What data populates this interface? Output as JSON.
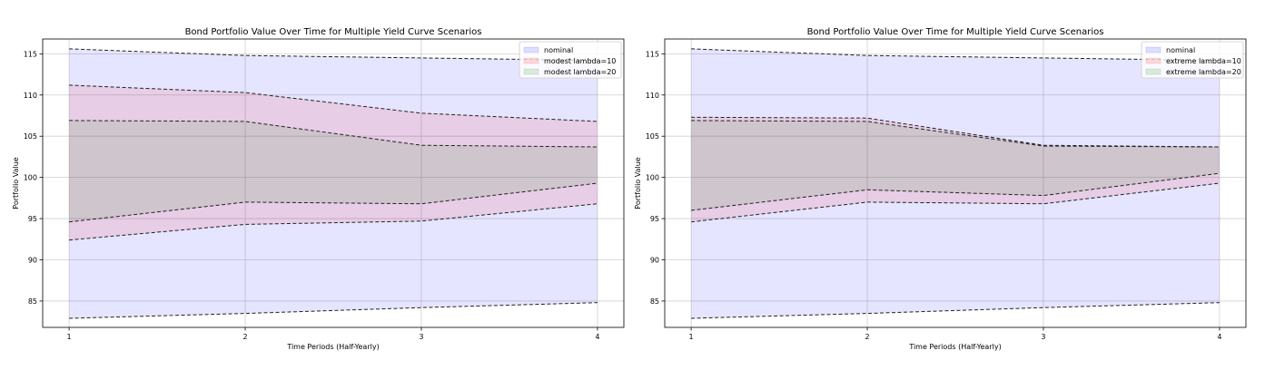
{
  "chart_data": [
    {
      "type": "area",
      "title": "Bond Portfolio Value Over Time for Multiple Yield Curve Scenarios",
      "xlabel": "Time Periods (Half-Yearly)",
      "ylabel": "Portfolio Value",
      "x": [
        1,
        2,
        3,
        4
      ],
      "xlim": [
        0.85,
        4.15
      ],
      "ylim": [
        81.8,
        116.8
      ],
      "yticks": [
        85,
        90,
        95,
        100,
        105,
        110,
        115
      ],
      "grid": true,
      "legend_position": "top-right",
      "series": [
        {
          "name": "nominal",
          "color": "#0000ff",
          "alpha": 0.1,
          "lower": [
            82.9,
            83.5,
            84.2,
            84.8
          ],
          "upper": [
            115.6,
            114.8,
            114.5,
            114.2
          ]
        },
        {
          "name": "modest lambda=10",
          "color": "#ff0000",
          "alpha": 0.1,
          "lower": [
            92.4,
            94.3,
            94.7,
            96.8
          ],
          "upper": [
            111.2,
            110.3,
            107.8,
            106.8
          ]
        },
        {
          "name": "modest lambda=20",
          "color": "#008000",
          "alpha": 0.1,
          "lower": [
            94.6,
            97.0,
            96.8,
            99.3
          ],
          "upper": [
            106.9,
            106.8,
            103.9,
            103.7
          ]
        }
      ]
    },
    {
      "type": "area",
      "title": "Bond Portfolio Value Over Time for Multiple Yield Curve Scenarios",
      "xlabel": "Time Periods (Half-Yearly)",
      "ylabel": "Portfolio Value",
      "x": [
        1,
        2,
        3,
        4
      ],
      "xlim": [
        0.85,
        4.15
      ],
      "ylim": [
        81.8,
        116.8
      ],
      "yticks": [
        85,
        90,
        95,
        100,
        105,
        110,
        115
      ],
      "grid": true,
      "legend_position": "top-right",
      "series": [
        {
          "name": "nominal",
          "color": "#0000ff",
          "alpha": 0.1,
          "lower": [
            82.9,
            83.5,
            84.2,
            84.8
          ],
          "upper": [
            115.6,
            114.8,
            114.5,
            114.2
          ]
        },
        {
          "name": "extreme lambda=10",
          "color": "#ff0000",
          "alpha": 0.1,
          "lower": [
            94.6,
            97.0,
            96.8,
            99.3
          ],
          "upper": [
            107.3,
            107.2,
            103.9,
            103.7
          ]
        },
        {
          "name": "extreme lambda=20",
          "color": "#008000",
          "alpha": 0.1,
          "lower": [
            96.0,
            98.5,
            97.8,
            100.5
          ],
          "upper": [
            106.9,
            106.8,
            103.8,
            103.7
          ]
        }
      ]
    }
  ]
}
